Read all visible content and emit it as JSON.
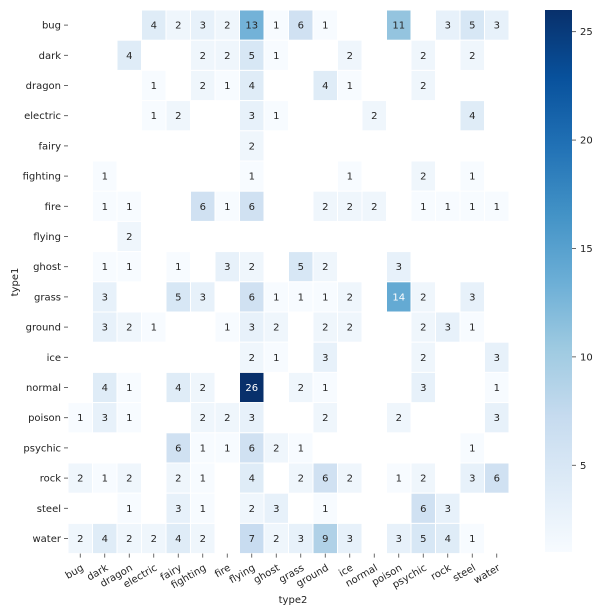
{
  "chart_data": {
    "type": "heatmap",
    "xlabel": "type2",
    "ylabel": "type1",
    "x_categories": [
      "bug",
      "dark",
      "dragon",
      "electric",
      "fairy",
      "fighting",
      "fire",
      "flying",
      "ghost",
      "grass",
      "ground",
      "ice",
      "normal",
      "poison",
      "psychic",
      "rock",
      "steel",
      "water"
    ],
    "y_categories": [
      "bug",
      "dark",
      "dragon",
      "electric",
      "fairy",
      "fighting",
      "fire",
      "flying",
      "ghost",
      "grass",
      "ground",
      "ice",
      "normal",
      "poison",
      "psychic",
      "rock",
      "steel",
      "water"
    ],
    "values": [
      [
        null,
        null,
        null,
        4,
        2,
        3,
        2,
        13,
        1,
        6,
        1,
        null,
        null,
        11,
        null,
        3,
        5,
        3
      ],
      [
        null,
        null,
        4,
        null,
        null,
        2,
        2,
        5,
        1,
        null,
        null,
        2,
        null,
        null,
        2,
        null,
        2,
        null
      ],
      [
        null,
        null,
        null,
        1,
        null,
        2,
        1,
        4,
        null,
        null,
        4,
        1,
        null,
        null,
        2,
        null,
        null,
        null
      ],
      [
        null,
        null,
        null,
        1,
        2,
        null,
        null,
        3,
        1,
        null,
        null,
        null,
        2,
        null,
        null,
        null,
        4,
        null
      ],
      [
        null,
        null,
        null,
        null,
        null,
        null,
        null,
        2,
        null,
        null,
        null,
        null,
        null,
        null,
        null,
        null,
        null,
        null
      ],
      [
        null,
        1,
        null,
        null,
        null,
        null,
        null,
        1,
        null,
        null,
        null,
        1,
        null,
        null,
        2,
        null,
        1,
        null
      ],
      [
        null,
        1,
        1,
        null,
        null,
        6,
        1,
        6,
        null,
        null,
        2,
        2,
        2,
        null,
        1,
        1,
        1,
        1
      ],
      [
        null,
        null,
        2,
        null,
        null,
        null,
        null,
        null,
        null,
        null,
        null,
        null,
        null,
        null,
        null,
        null,
        null,
        null
      ],
      [
        null,
        1,
        1,
        null,
        1,
        null,
        3,
        2,
        null,
        5,
        2,
        null,
        null,
        3,
        null,
        null,
        null,
        null
      ],
      [
        null,
        3,
        null,
        null,
        5,
        3,
        null,
        6,
        1,
        1,
        1,
        2,
        null,
        14,
        2,
        null,
        3,
        null
      ],
      [
        null,
        3,
        2,
        1,
        null,
        null,
        1,
        3,
        2,
        null,
        2,
        2,
        null,
        null,
        2,
        3,
        1,
        null
      ],
      [
        null,
        null,
        null,
        null,
        null,
        null,
        null,
        2,
        1,
        null,
        3,
        null,
        null,
        null,
        2,
        null,
        null,
        3
      ],
      [
        null,
        4,
        1,
        null,
        4,
        2,
        null,
        26,
        null,
        2,
        1,
        null,
        null,
        null,
        3,
        null,
        null,
        1
      ],
      [
        1,
        3,
        1,
        null,
        null,
        2,
        2,
        3,
        null,
        null,
        2,
        null,
        null,
        2,
        null,
        null,
        null,
        3
      ],
      [
        null,
        null,
        null,
        null,
        6,
        1,
        1,
        6,
        2,
        1,
        null,
        null,
        null,
        null,
        null,
        null,
        1,
        null
      ],
      [
        2,
        1,
        2,
        null,
        2,
        1,
        null,
        4,
        null,
        2,
        6,
        2,
        null,
        1,
        2,
        null,
        3,
        6
      ],
      [
        null,
        null,
        1,
        null,
        3,
        1,
        null,
        2,
        3,
        null,
        1,
        null,
        null,
        null,
        6,
        3,
        null,
        null
      ],
      [
        2,
        4,
        2,
        2,
        4,
        2,
        null,
        7,
        2,
        3,
        9,
        3,
        null,
        3,
        5,
        4,
        1,
        null
      ]
    ],
    "colorscale": "Blues",
    "vmin": 1,
    "vmax": 26,
    "colorbar_ticks": [
      5,
      10,
      15,
      20,
      25
    ]
  }
}
